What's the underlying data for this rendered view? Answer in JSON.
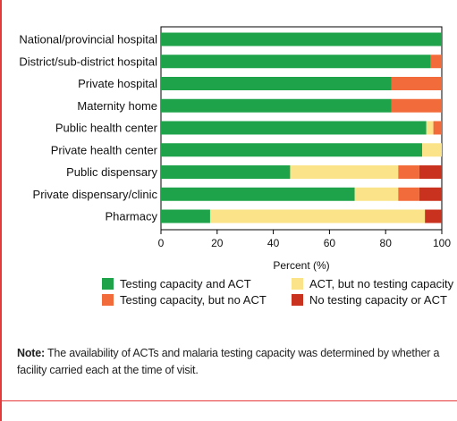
{
  "colors": {
    "testing_and_act": "#1ea34a",
    "act_no_testing": "#fbe38a",
    "testing_no_act": "#f26b3a",
    "neither": "#c8321e",
    "frame_accent": "#e5393c"
  },
  "legend": [
    {
      "label": "Testing capacity and ACT",
      "color_key": "testing_and_act"
    },
    {
      "label": "ACT, but no testing capacity",
      "color_key": "act_no_testing"
    },
    {
      "label": "Testing capacity, but no ACT",
      "color_key": "testing_no_act"
    },
    {
      "label": "No testing capacity or ACT",
      "color_key": "neither"
    }
  ],
  "note": {
    "label": "Note:",
    "text": " The availability of ACTs and malaria testing capacity was determined by whether a facility carried each at the time of visit."
  },
  "chart_data": {
    "type": "bar",
    "orientation": "horizontal",
    "stacked": true,
    "categories": [
      "National/provincial hospital",
      "District/sub-district hospital",
      "Private hospital",
      "Maternity home",
      "Public health center",
      "Private health center",
      "Public dispensary",
      "Private dispensary/clinic",
      "Pharmacy"
    ],
    "series": [
      {
        "name": "Testing capacity and ACT",
        "color_key": "testing_and_act",
        "values": [
          100,
          96,
          82,
          82,
          94.5,
          93,
          46,
          69,
          17.5
        ]
      },
      {
        "name": "ACT, but no testing capacity",
        "color_key": "act_no_testing",
        "values": [
          0,
          0,
          0,
          0,
          2.5,
          7,
          38.5,
          15.5,
          76.5
        ]
      },
      {
        "name": "Testing capacity, but no ACT",
        "color_key": "testing_no_act",
        "values": [
          0,
          4,
          18,
          18,
          3,
          0,
          7.5,
          7.5,
          0
        ]
      },
      {
        "name": "No testing capacity or ACT",
        "color_key": "neither",
        "values": [
          0,
          0,
          0,
          0,
          0,
          0,
          8,
          8,
          6
        ]
      }
    ],
    "xlabel": "Percent (%)",
    "xlim": [
      0,
      100
    ],
    "xticks": [
      "0",
      "20",
      "40",
      "60",
      "80",
      "100"
    ],
    "grid": false
  }
}
